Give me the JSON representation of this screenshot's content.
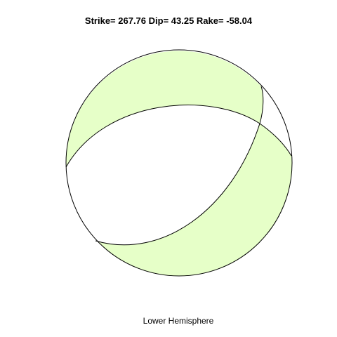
{
  "title": "Strike= 267.76 Dip= 43.25 Rake= -58.04",
  "subtitle": "Lower Hemisphere",
  "focal_mechanism": {
    "strike": 267.76,
    "dip": 43.25,
    "rake": -58.04,
    "projection": "lower hemisphere"
  },
  "colors": {
    "compressional_fill": "#e6ffc8",
    "dilatational_fill": "#ffffff",
    "outline": "#000000"
  }
}
